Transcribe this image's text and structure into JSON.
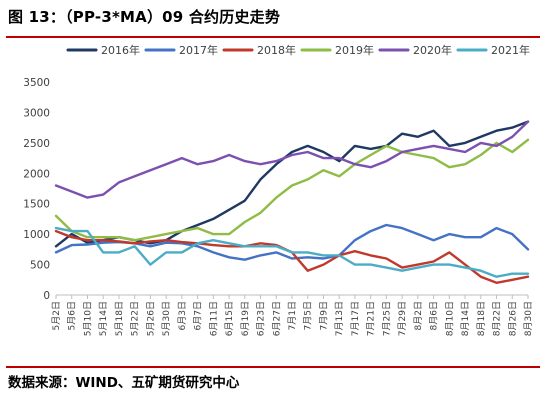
{
  "figure_title": "图 13：（PP-3*MA）09 合约历史走势",
  "source": "数据来源：WIND、五矿期货研究中心",
  "chart_data": {
    "type": "line",
    "title": "",
    "xlabel": "",
    "ylabel": "",
    "ylim": [
      0,
      3500
    ],
    "yticks": [
      0,
      500,
      1000,
      1500,
      2000,
      2500,
      3000,
      3500
    ],
    "grid": false,
    "legend_position": "top",
    "x": [
      "5月2日",
      "5月6日",
      "5月10日",
      "5月14日",
      "5月18日",
      "5月22日",
      "5月26日",
      "5月30日",
      "6月3日",
      "6月7日",
      "6月11日",
      "6月15日",
      "6月19日",
      "6月23日",
      "6月27日",
      "7月1日",
      "7月5日",
      "7月9日",
      "7月13日",
      "7月17日",
      "7月21日",
      "7月25日",
      "7月29日",
      "8月2日",
      "8月6日",
      "8月10日",
      "8月14日",
      "8月18日",
      "8月22日",
      "8月26日",
      "8月30日"
    ],
    "series": [
      {
        "name": "2016年",
        "color": "#1f3864",
        "values": [
          800,
          1000,
          860,
          900,
          950,
          900,
          850,
          900,
          1050,
          1150,
          1250,
          1400,
          1550,
          1900,
          2150,
          2350,
          2450,
          2350,
          2200,
          2450,
          2400,
          2450,
          2650,
          2600,
          2700,
          2450,
          2500,
          2600,
          2700,
          2750,
          2850
        ]
      },
      {
        "name": "2017年",
        "color": "#4472c4",
        "values": [
          700,
          820,
          830,
          860,
          870,
          850,
          800,
          860,
          850,
          800,
          700,
          620,
          580,
          650,
          700,
          600,
          620,
          600,
          650,
          900,
          1050,
          1150,
          1100,
          1000,
          900,
          1000,
          950,
          950,
          1100,
          1000,
          750
        ]
      },
      {
        "name": "2018年",
        "color": "#c0392b",
        "values": [
          1050,
          950,
          900,
          900,
          880,
          850,
          880,
          900,
          870,
          850,
          820,
          800,
          800,
          850,
          820,
          700,
          400,
          500,
          650,
          720,
          650,
          600,
          450,
          500,
          550,
          700,
          500,
          300,
          200,
          250,
          300
        ]
      },
      {
        "name": "2019年",
        "color": "#8fbc45",
        "values": [
          1300,
          1050,
          950,
          950,
          950,
          900,
          950,
          1000,
          1050,
          1100,
          1000,
          1000,
          1200,
          1350,
          1600,
          1800,
          1900,
          2050,
          1950,
          2150,
          2300,
          2450,
          2350,
          2300,
          2250,
          2100,
          2150,
          2300,
          2500,
          2350,
          2550
        ]
      },
      {
        "name": "2020年",
        "color": "#7b50b0",
        "values": [
          1800,
          1700,
          1600,
          1650,
          1850,
          1950,
          2050,
          2150,
          2250,
          2150,
          2200,
          2300,
          2200,
          2150,
          2200,
          2300,
          2350,
          2250,
          2250,
          2150,
          2100,
          2200,
          2350,
          2400,
          2450,
          2400,
          2350,
          2500,
          2450,
          2600,
          2850
        ]
      },
      {
        "name": "2021年",
        "color": "#4bacc6",
        "values": [
          1100,
          1050,
          1050,
          700,
          700,
          800,
          500,
          700,
          700,
          850,
          900,
          850,
          800,
          800,
          800,
          700,
          700,
          650,
          650,
          500,
          500,
          450,
          400,
          450,
          500,
          500,
          450,
          400,
          300,
          350,
          350
        ]
      }
    ]
  }
}
